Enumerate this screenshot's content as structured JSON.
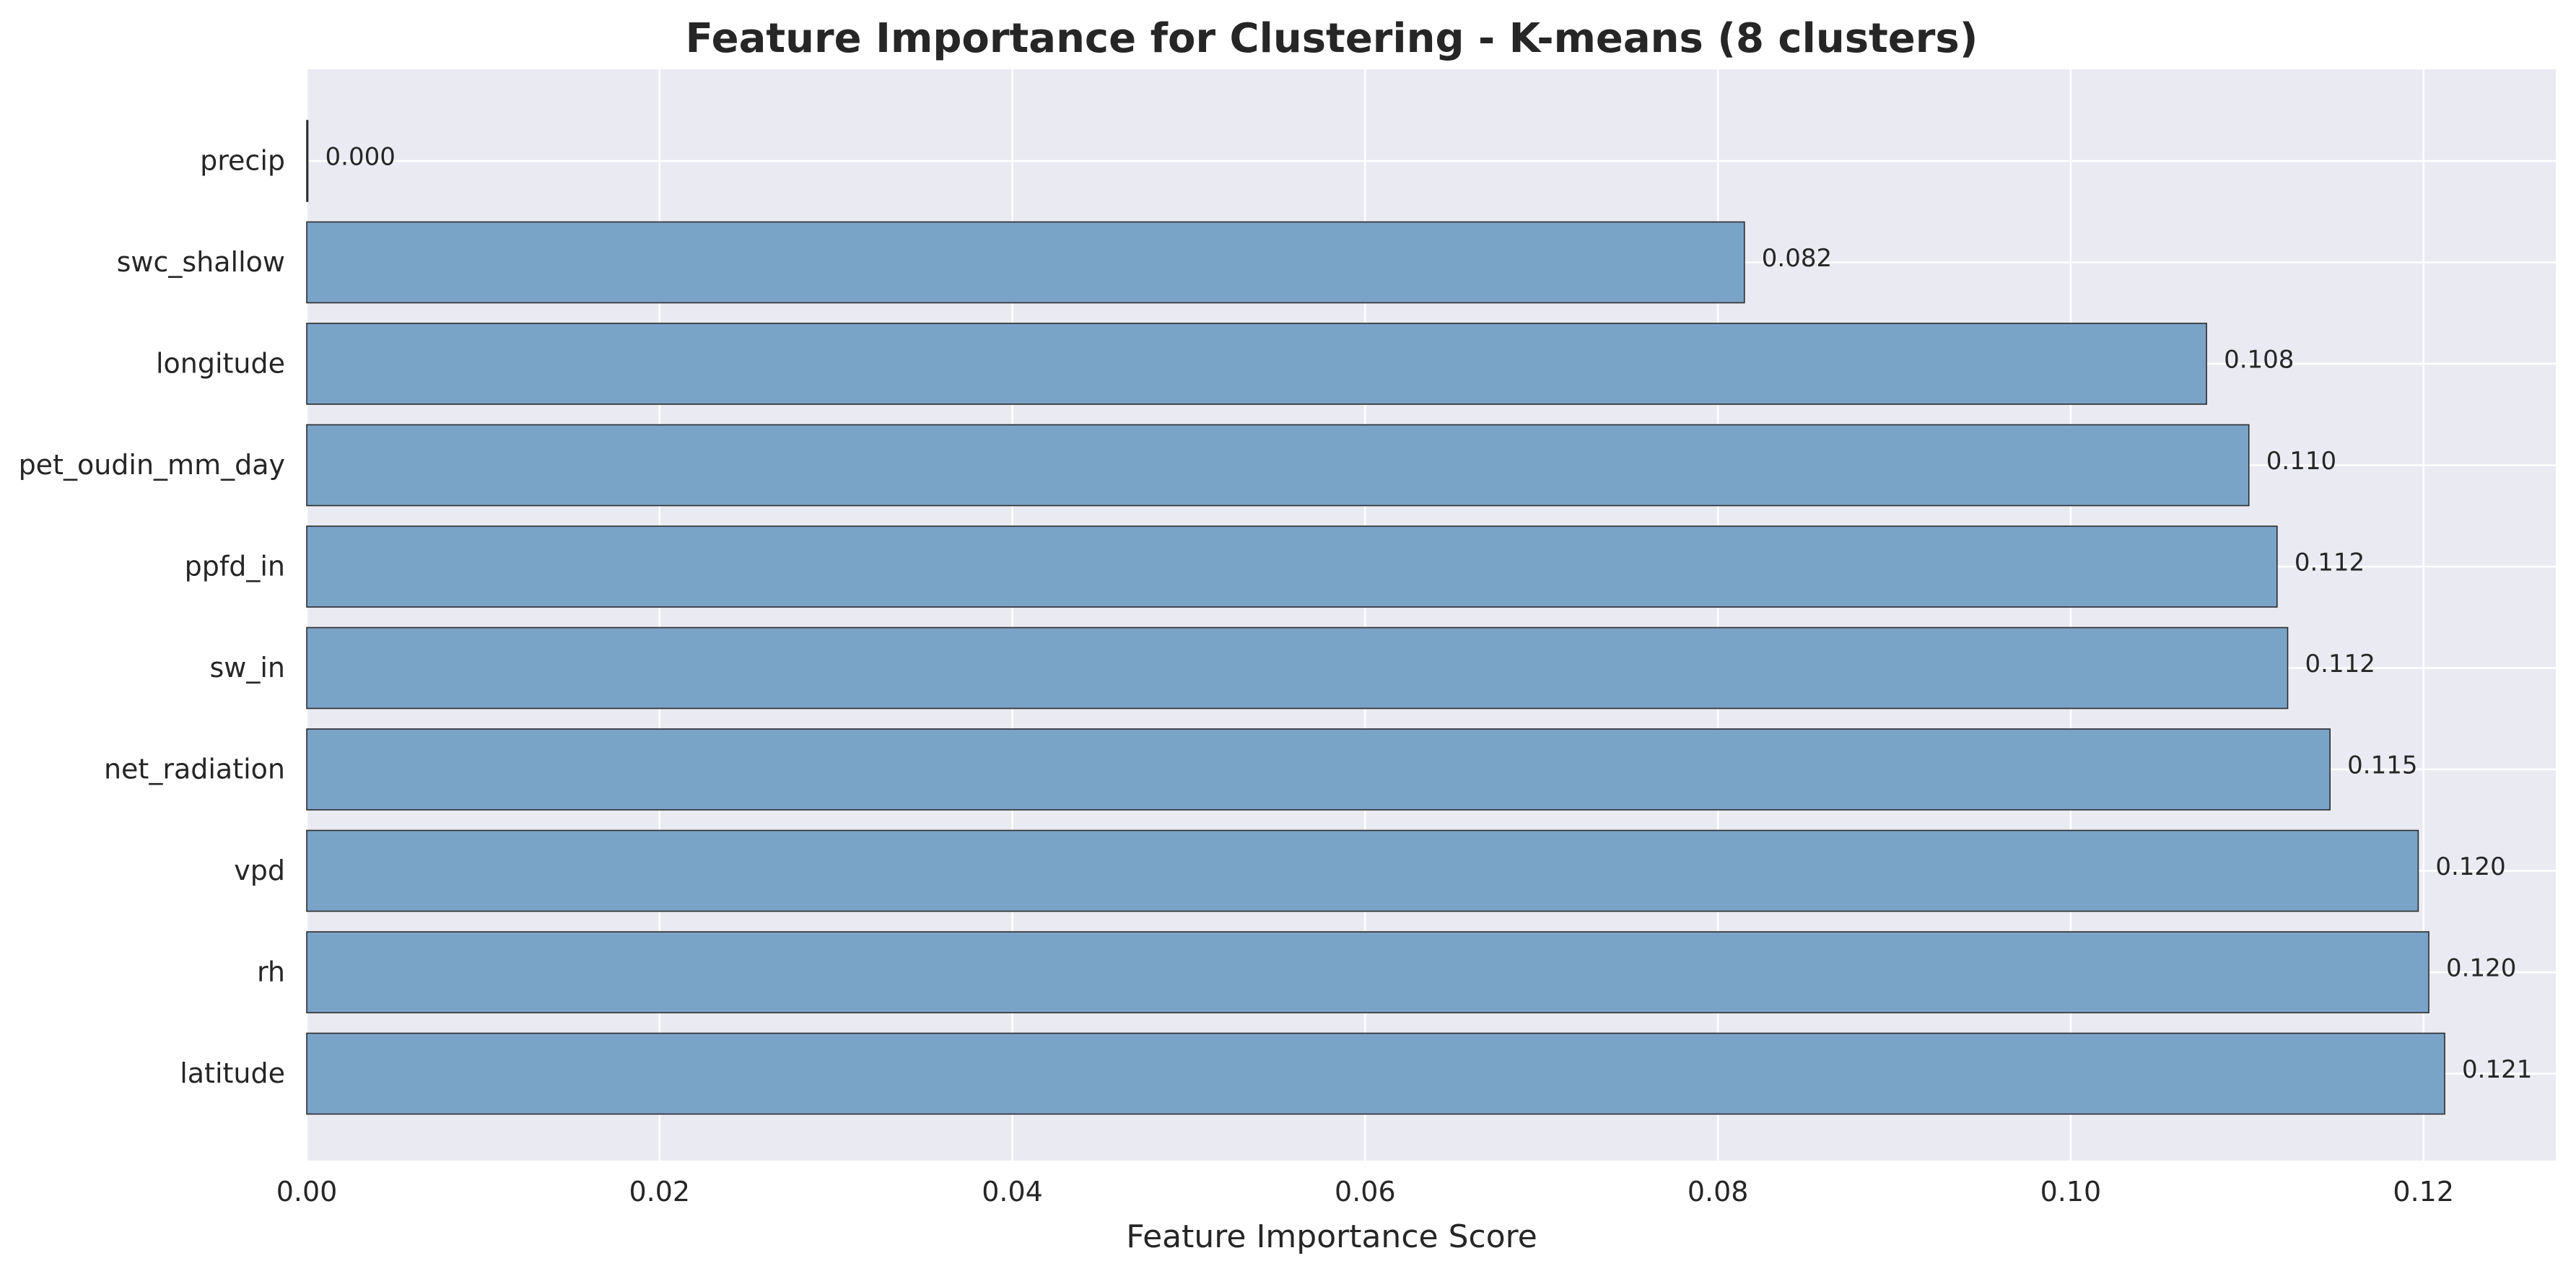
{
  "chart_data": {
    "type": "bar",
    "orientation": "horizontal",
    "title": "Feature Importance for Clustering - K-means (8 clusters)",
    "xlabel": "Feature Importance Score",
    "ylabel": "",
    "xlim": [
      0,
      0.1275
    ],
    "x_ticks": [
      0.0,
      0.02,
      0.04,
      0.06,
      0.08,
      0.1,
      0.12
    ],
    "x_tick_labels": [
      "0.00",
      "0.02",
      "0.04",
      "0.06",
      "0.08",
      "0.10",
      "0.12"
    ],
    "categories": [
      "precip",
      "swc_shallow",
      "longitude",
      "pet_oudin_mm_day",
      "ppfd_in",
      "sw_in",
      "net_radiation",
      "vpd",
      "rh",
      "latitude"
    ],
    "values": [
      0.0,
      0.0815,
      0.1077,
      0.1101,
      0.1117,
      0.1123,
      0.1147,
      0.1197,
      0.1203,
      0.1212
    ],
    "data_labels": [
      "0.000",
      "0.082",
      "0.108",
      "0.110",
      "0.112",
      "0.112",
      "0.115",
      "0.120",
      "0.120",
      "0.121"
    ],
    "grid": true,
    "colors": {
      "bar_fill": "#7aa3c8",
      "bar_edge": "#2b2b2b",
      "plot_background": "#eaeaf2",
      "grid": "#ffffff",
      "text": "#262626"
    }
  }
}
